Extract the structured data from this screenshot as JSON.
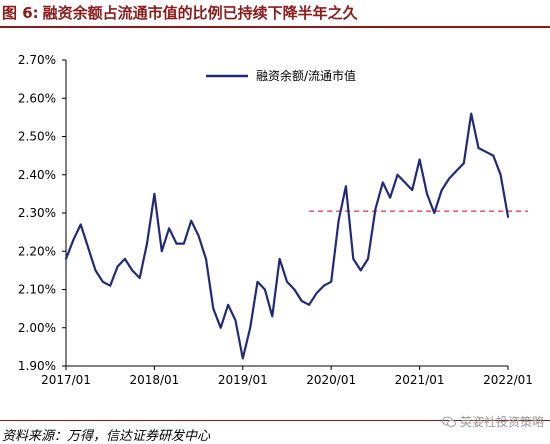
{
  "header": {
    "figure_label": "图 6:",
    "title": "融资余额占流通市值的比例已持续下降半年之久"
  },
  "footer": {
    "source": "资料来源：万得，信达证券研发中心",
    "watermark": "英姿社投资策略"
  },
  "colors": {
    "title": "#8b1a1a",
    "series": "#1f2a7a",
    "reference_line": "#e0303a"
  },
  "chart_data": {
    "type": "line",
    "title": "",
    "xlabel": "",
    "ylabel": "",
    "x_ticks": [
      "2017/01",
      "2018/01",
      "2019/01",
      "2020/01",
      "2021/01",
      "2022/01"
    ],
    "y_ticks": [
      "1.90%",
      "2.00%",
      "2.10%",
      "2.20%",
      "2.30%",
      "2.40%",
      "2.50%",
      "2.60%",
      "2.70%"
    ],
    "ylim": [
      1.9,
      2.7
    ],
    "xlim": [
      "2017/01",
      "2022/01"
    ],
    "legend": {
      "placement": "top-left",
      "entries": [
        "融资余额/流通市值"
      ]
    },
    "grid": false,
    "series": [
      {
        "name": "融资余额/流通市值",
        "x": [
          "2017/01",
          "2017/02",
          "2017/03",
          "2017/04",
          "2017/05",
          "2017/06",
          "2017/07",
          "2017/08",
          "2017/09",
          "2017/10",
          "2017/11",
          "2017/12",
          "2018/01",
          "2018/02",
          "2018/03",
          "2018/04",
          "2018/05",
          "2018/06",
          "2018/07",
          "2018/08",
          "2018/09",
          "2018/10",
          "2018/11",
          "2018/12",
          "2019/01",
          "2019/02",
          "2019/03",
          "2019/04",
          "2019/05",
          "2019/06",
          "2019/07",
          "2019/08",
          "2019/09",
          "2019/10",
          "2019/11",
          "2019/12",
          "2020/01",
          "2020/02",
          "2020/03",
          "2020/04",
          "2020/05",
          "2020/06",
          "2020/07",
          "2020/08",
          "2020/09",
          "2020/10",
          "2020/11",
          "2020/12",
          "2021/01",
          "2021/02",
          "2021/03",
          "2021/04",
          "2021/05",
          "2021/06",
          "2021/07",
          "2021/08",
          "2021/09",
          "2021/10",
          "2021/11",
          "2021/12",
          "2022/01"
        ],
        "values": [
          2.18,
          2.23,
          2.27,
          2.21,
          2.15,
          2.12,
          2.11,
          2.16,
          2.18,
          2.15,
          2.13,
          2.22,
          2.35,
          2.2,
          2.26,
          2.22,
          2.22,
          2.28,
          2.24,
          2.18,
          2.05,
          2.0,
          2.06,
          2.02,
          1.92,
          2.0,
          2.12,
          2.1,
          2.03,
          2.18,
          2.12,
          2.1,
          2.07,
          2.06,
          2.09,
          2.11,
          2.12,
          2.28,
          2.37,
          2.18,
          2.15,
          2.18,
          2.31,
          2.38,
          2.34,
          2.4,
          2.38,
          2.36,
          2.44,
          2.35,
          2.3,
          2.36,
          2.39,
          2.41,
          2.43,
          2.56,
          2.47,
          2.46,
          2.45,
          2.4,
          2.29
        ]
      }
    ],
    "reference_line": {
      "value": 2.305,
      "from": "2019/10",
      "to": "2022/01",
      "style": "dashed"
    }
  }
}
